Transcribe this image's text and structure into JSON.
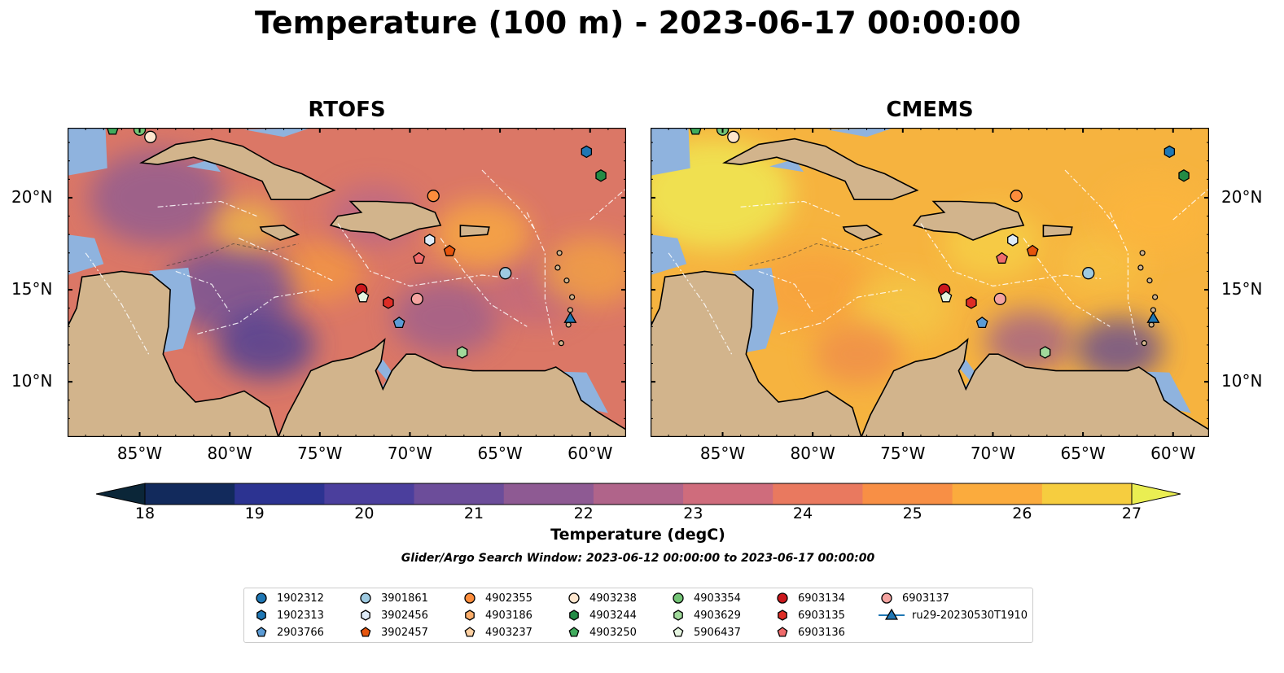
{
  "title": "Temperature (100 m) - 2023-06-17 00:00:00",
  "panels": [
    {
      "title": "RTOFS",
      "theme": "rtofs"
    },
    {
      "title": "CMEMS",
      "theme": "cmems"
    }
  ],
  "axes": {
    "x_ticks": [
      "85°W",
      "80°W",
      "75°W",
      "70°W",
      "65°W",
      "60°W"
    ],
    "y_ticks": [
      "20°N",
      "15°N",
      "10°N"
    ],
    "lon_range": [
      -89,
      -58
    ],
    "lat_range": [
      7,
      23.8
    ]
  },
  "colorbar": {
    "label": "Temperature (degC)",
    "ticks": [
      "18",
      "19",
      "20",
      "21",
      "22",
      "23",
      "24",
      "25",
      "26",
      "27"
    ],
    "range": [
      18,
      27
    ],
    "colors": [
      "#0b2638",
      "#122a5c",
      "#2c3391",
      "#4b3f9d",
      "#6c4d9a",
      "#8e5a93",
      "#b0648a",
      "#cf6c7c",
      "#e9795f",
      "#f88f45",
      "#fbab3d",
      "#f6cd3f",
      "#eaee52"
    ]
  },
  "search_window": "Glider/Argo Search Window: 2023-06-12 00:00:00 to 2023-06-17 00:00:00",
  "legend": [
    {
      "label": "1902312",
      "marker": "circle",
      "color": "#1f77b4"
    },
    {
      "label": "1902313",
      "marker": "hexagon",
      "color": "#1f77b4"
    },
    {
      "label": "2903766",
      "marker": "pentagon",
      "color": "#5b9bd5"
    },
    {
      "label": "3901861",
      "marker": "circle",
      "color": "#9ecae1"
    },
    {
      "label": "3902456",
      "marker": "hexagon",
      "color": "#deebf7"
    },
    {
      "label": "3902457",
      "marker": "pentagon",
      "color": "#e6550d"
    },
    {
      "label": "4902355",
      "marker": "circle",
      "color": "#fd8d3c"
    },
    {
      "label": "4903186",
      "marker": "hexagon",
      "color": "#fdae6b"
    },
    {
      "label": "4903237",
      "marker": "pentagon",
      "color": "#fdd0a2"
    },
    {
      "label": "4903238",
      "marker": "circle",
      "color": "#fee6ce"
    },
    {
      "label": "4903244",
      "marker": "hexagon",
      "color": "#238b45"
    },
    {
      "label": "4903250",
      "marker": "pentagon",
      "color": "#41ab5d"
    },
    {
      "label": "4903354",
      "marker": "circle",
      "color": "#74c476"
    },
    {
      "label": "4903629",
      "marker": "hexagon",
      "color": "#a1d99b"
    },
    {
      "label": "5906437",
      "marker": "pentagon",
      "color": "#e5f5e0"
    },
    {
      "label": "6903134",
      "marker": "circle",
      "color": "#cb181d"
    },
    {
      "label": "6903135",
      "marker": "hexagon",
      "color": "#de2d26"
    },
    {
      "label": "6903136",
      "marker": "pentagon",
      "color": "#f06b6b"
    },
    {
      "label": "6903137",
      "marker": "circle",
      "color": "#f4a3a0"
    },
    {
      "label": "ru29-20230530T1910",
      "marker": "triangle",
      "color": "#1f77b4"
    }
  ],
  "floats": [
    {
      "id": "4903250",
      "lon": -86.5,
      "lat": 23.7
    },
    {
      "id": "4903354",
      "lon": -85.0,
      "lat": 23.7
    },
    {
      "id": "4903238",
      "lon": -84.4,
      "lat": 23.3
    },
    {
      "id": "1902313",
      "lon": -60.2,
      "lat": 22.5
    },
    {
      "id": "4903244",
      "lon": -59.4,
      "lat": 21.2
    },
    {
      "id": "4902355",
      "lon": -68.7,
      "lat": 20.1
    },
    {
      "id": "3902456",
      "lon": -68.9,
      "lat": 17.7
    },
    {
      "id": "3902457",
      "lon": -67.8,
      "lat": 17.1
    },
    {
      "id": "6903136",
      "lon": -69.5,
      "lat": 16.7
    },
    {
      "id": "3901861",
      "lon": -64.7,
      "lat": 15.9
    },
    {
      "id": "6903134",
      "lon": -72.7,
      "lat": 15.0
    },
    {
      "id": "5906437",
      "lon": -72.6,
      "lat": 14.6
    },
    {
      "id": "6903135",
      "lon": -71.2,
      "lat": 14.3
    },
    {
      "id": "6903137",
      "lon": -69.6,
      "lat": 14.5
    },
    {
      "id": "2903766",
      "lon": -70.6,
      "lat": 13.2
    },
    {
      "id": "4903629",
      "lon": -67.1,
      "lat": 11.6
    },
    {
      "id": "ru29-20230530T1910",
      "lon": -61.1,
      "lat": 13.4
    }
  ]
}
